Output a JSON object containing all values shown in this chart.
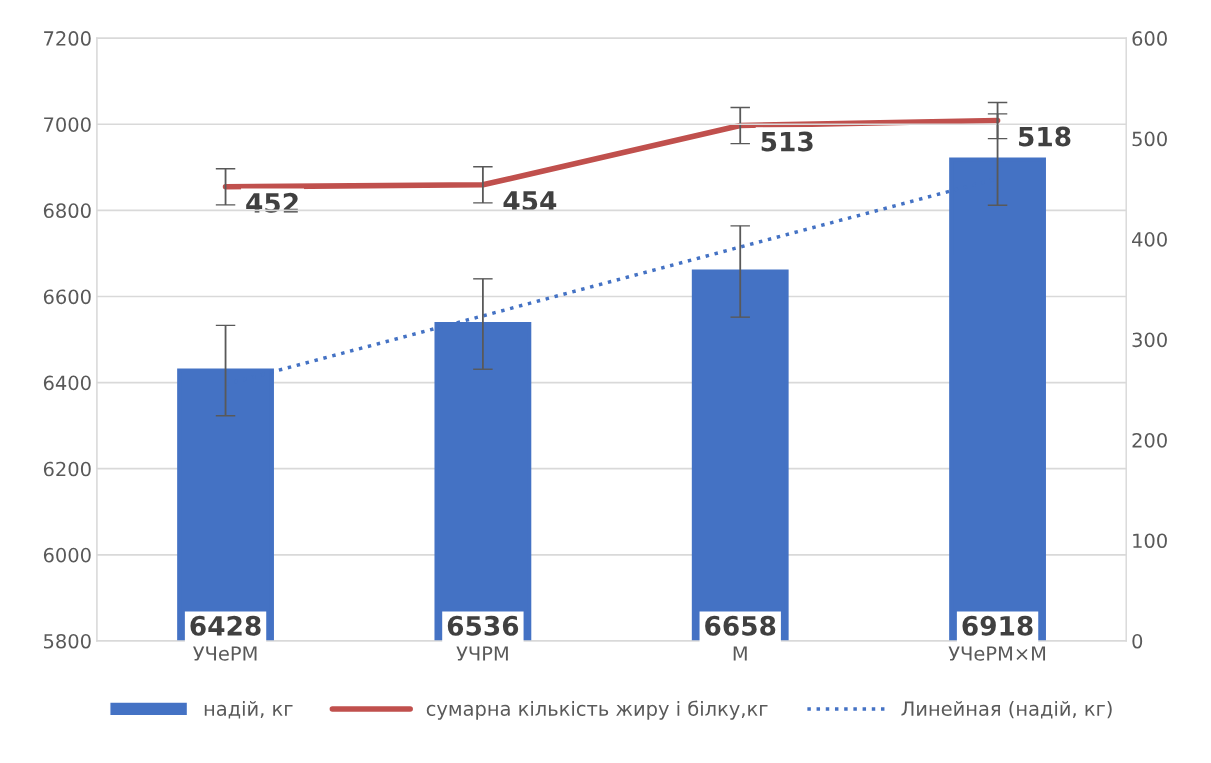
{
  "chart_data": {
    "type": "bar",
    "categories": [
      "УЧеРМ",
      "УЧРМ",
      "М",
      "УЧеРМ×М"
    ],
    "series": [
      {
        "name": "надій, кг",
        "type": "bar",
        "color": "#4472c4",
        "values": [
          6428,
          6536,
          6658,
          6918
        ],
        "errors": [
          105,
          105,
          106,
          106
        ],
        "data_labels": true
      },
      {
        "name": "сумарна кількість жиру і білку,кг",
        "type": "line",
        "axis": "y2",
        "color": "#c0504d",
        "values": [
          452,
          454,
          513,
          518
        ],
        "errors": [
          18,
          18,
          18,
          18
        ],
        "data_labels": true,
        "line_style": "solid"
      },
      {
        "name": "Линейная (надій, кг)",
        "type": "line",
        "color": "#4472c4",
        "values": [
          6396,
          6555,
          6715,
          6874
        ],
        "line_style": "dotted"
      }
    ],
    "ylim": [
      5800,
      7200
    ],
    "yticks": [
      5800,
      6000,
      6200,
      6400,
      6600,
      6800,
      7000,
      7200
    ],
    "y2lim": [
      0,
      600
    ],
    "y2ticks": [
      0,
      100,
      200,
      300,
      400,
      500,
      600
    ],
    "grid": "y",
    "legend": "bottom"
  }
}
